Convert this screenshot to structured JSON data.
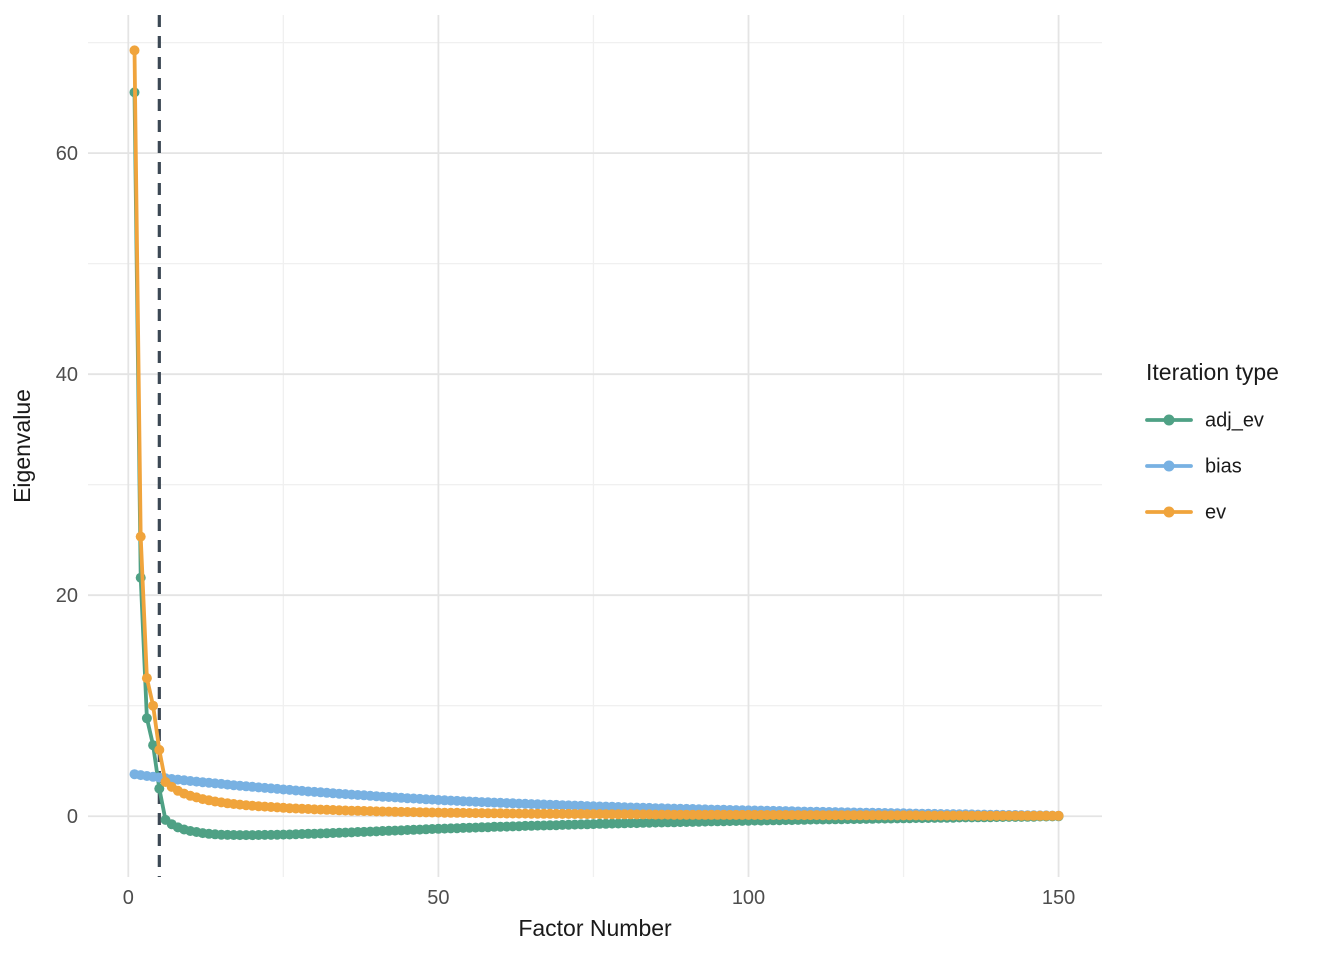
{
  "colors": {
    "background": "#FFFFFF",
    "grid_major": "#E4E4E4",
    "grid_minor": "#F0F0F0",
    "tick_label": "#4D4D4D",
    "axis_title": "#1A1A1A",
    "legend_text": "#1A1A1A",
    "cutoff_line": "#3C4854"
  },
  "chart_data": {
    "type": "line",
    "title": "",
    "xlabel": "Factor Number",
    "ylabel": "Eigenvalue",
    "legend_title": "Iteration type",
    "legend_position": "right",
    "grid": true,
    "x_ticks": [
      0,
      50,
      100,
      150
    ],
    "x_minor_ticks": [
      25,
      75,
      125
    ],
    "y_ticks": [
      0,
      20,
      40,
      60
    ],
    "y_minor_ticks": [
      10,
      30,
      50,
      70
    ],
    "x_domain": [
      -6.5,
      157
    ],
    "y_domain": [
      -5.5,
      72.5
    ],
    "x_start": 1,
    "x_step": 1,
    "n_points": 150,
    "vline_x": 5,
    "vline_style": "dashed",
    "series": [
      {
        "name": "adj_ev",
        "color": "#4FA185",
        "values": [
          65.5,
          21.58,
          8.86,
          6.43,
          2.5,
          -0.33,
          -0.72,
          -1.01,
          -1.2,
          -1.34,
          -1.43,
          -1.53,
          -1.59,
          -1.64,
          -1.67,
          -1.69,
          -1.7,
          -1.71,
          -1.71,
          -1.71,
          -1.7,
          -1.69,
          -1.69,
          -1.67,
          -1.66,
          -1.65,
          -1.63,
          -1.61,
          -1.59,
          -1.58,
          -1.56,
          -1.54,
          -1.52,
          -1.5,
          -1.48,
          -1.46,
          -1.43,
          -1.42,
          -1.39,
          -1.37,
          -1.34,
          -1.32,
          -1.3,
          -1.28,
          -1.25,
          -1.23,
          -1.21,
          -1.18,
          -1.16,
          -1.14,
          -1.12,
          -1.1,
          -1.08,
          -1.06,
          -1.04,
          -1.03,
          -1.0,
          -0.99,
          -0.96,
          -0.95,
          -0.94,
          -0.92,
          -0.9,
          -0.88,
          -0.87,
          -0.85,
          -0.84,
          -0.82,
          -0.81,
          -0.79,
          -0.77,
          -0.76,
          -0.74,
          -0.73,
          -0.71,
          -0.69,
          -0.69,
          -0.67,
          -0.66,
          -0.64,
          -0.62,
          -0.62,
          -0.6,
          -0.59,
          -0.58,
          -0.57,
          -0.55,
          -0.55,
          -0.53,
          -0.52,
          -0.51,
          -0.5,
          -0.49,
          -0.47,
          -0.46,
          -0.45,
          -0.44,
          -0.43,
          -0.42,
          -0.41,
          -0.4,
          -0.4,
          -0.38,
          -0.37,
          -0.36,
          -0.35,
          -0.35,
          -0.33,
          -0.32,
          -0.31,
          -0.3,
          -0.3,
          -0.29,
          -0.28,
          -0.27,
          -0.26,
          -0.26,
          -0.25,
          -0.24,
          -0.23,
          -0.22,
          -0.22,
          -0.21,
          -0.2,
          -0.19,
          -0.18,
          -0.17,
          -0.17,
          -0.16,
          -0.15,
          -0.14,
          -0.13,
          -0.13,
          -0.12,
          -0.11,
          -0.11,
          -0.1,
          -0.1,
          -0.09,
          -0.08,
          -0.07,
          -0.06,
          -0.06,
          -0.06,
          -0.05,
          -0.04,
          -0.03,
          -0.03,
          -0.02,
          -0.01
        ]
      },
      {
        "name": "bias",
        "color": "#78B1E2",
        "values": [
          3.8,
          3.72,
          3.64,
          3.57,
          3.5,
          3.43,
          3.37,
          3.31,
          3.25,
          3.19,
          3.13,
          3.08,
          3.03,
          2.97,
          2.92,
          2.86,
          2.81,
          2.76,
          2.71,
          2.66,
          2.61,
          2.56,
          2.52,
          2.47,
          2.42,
          2.38,
          2.33,
          2.29,
          2.24,
          2.2,
          2.16,
          2.12,
          2.08,
          2.04,
          2.0,
          1.96,
          1.92,
          1.89,
          1.85,
          1.81,
          1.77,
          1.74,
          1.7,
          1.67,
          1.63,
          1.6,
          1.57,
          1.53,
          1.5,
          1.47,
          1.44,
          1.41,
          1.39,
          1.36,
          1.33,
          1.31,
          1.28,
          1.26,
          1.23,
          1.21,
          1.19,
          1.17,
          1.14,
          1.12,
          1.1,
          1.08,
          1.06,
          1.04,
          1.02,
          1.0,
          0.98,
          0.96,
          0.94,
          0.92,
          0.9,
          0.88,
          0.87,
          0.85,
          0.83,
          0.81,
          0.79,
          0.78,
          0.76,
          0.75,
          0.73,
          0.72,
          0.7,
          0.69,
          0.67,
          0.66,
          0.65,
          0.63,
          0.62,
          0.6,
          0.59,
          0.58,
          0.56,
          0.55,
          0.54,
          0.53,
          0.52,
          0.51,
          0.49,
          0.48,
          0.47,
          0.46,
          0.45,
          0.43,
          0.42,
          0.41,
          0.4,
          0.39,
          0.38,
          0.37,
          0.36,
          0.35,
          0.34,
          0.33,
          0.32,
          0.31,
          0.3,
          0.29,
          0.28,
          0.27,
          0.26,
          0.25,
          0.24,
          0.23,
          0.22,
          0.21,
          0.2,
          0.19,
          0.19,
          0.18,
          0.17,
          0.16,
          0.15,
          0.15,
          0.14,
          0.13,
          0.12,
          0.11,
          0.11,
          0.1,
          0.09,
          0.08,
          0.07,
          0.07,
          0.06,
          0.05
        ]
      },
      {
        "name": "ev",
        "color": "#F0A43C",
        "values": [
          69.3,
          25.3,
          12.5,
          10.0,
          6.0,
          3.1,
          2.65,
          2.3,
          2.05,
          1.85,
          1.7,
          1.55,
          1.44,
          1.33,
          1.25,
          1.17,
          1.11,
          1.05,
          1.0,
          0.95,
          0.91,
          0.87,
          0.83,
          0.8,
          0.76,
          0.73,
          0.7,
          0.68,
          0.65,
          0.62,
          0.6,
          0.58,
          0.56,
          0.54,
          0.52,
          0.5,
          0.49,
          0.47,
          0.46,
          0.44,
          0.43,
          0.42,
          0.4,
          0.39,
          0.38,
          0.37,
          0.36,
          0.35,
          0.34,
          0.33,
          0.32,
          0.31,
          0.31,
          0.3,
          0.29,
          0.28,
          0.28,
          0.27,
          0.27,
          0.26,
          0.25,
          0.25,
          0.24,
          0.24,
          0.23,
          0.23,
          0.22,
          0.22,
          0.21,
          0.21,
          0.21,
          0.2,
          0.2,
          0.19,
          0.19,
          0.19,
          0.18,
          0.18,
          0.17,
          0.17,
          0.17,
          0.16,
          0.16,
          0.16,
          0.15,
          0.15,
          0.15,
          0.14,
          0.14,
          0.14,
          0.14,
          0.13,
          0.13,
          0.13,
          0.13,
          0.13,
          0.12,
          0.12,
          0.12,
          0.12,
          0.12,
          0.11,
          0.11,
          0.11,
          0.11,
          0.11,
          0.1,
          0.1,
          0.1,
          0.1,
          0.1,
          0.09,
          0.09,
          0.09,
          0.09,
          0.09,
          0.08,
          0.08,
          0.08,
          0.08,
          0.08,
          0.07,
          0.07,
          0.07,
          0.07,
          0.07,
          0.07,
          0.06,
          0.06,
          0.06,
          0.06,
          0.06,
          0.06,
          0.06,
          0.06,
          0.05,
          0.05,
          0.05,
          0.05,
          0.05,
          0.05,
          0.05,
          0.05,
          0.04,
          0.04,
          0.04,
          0.04,
          0.04,
          0.04,
          0.04
        ]
      }
    ]
  }
}
